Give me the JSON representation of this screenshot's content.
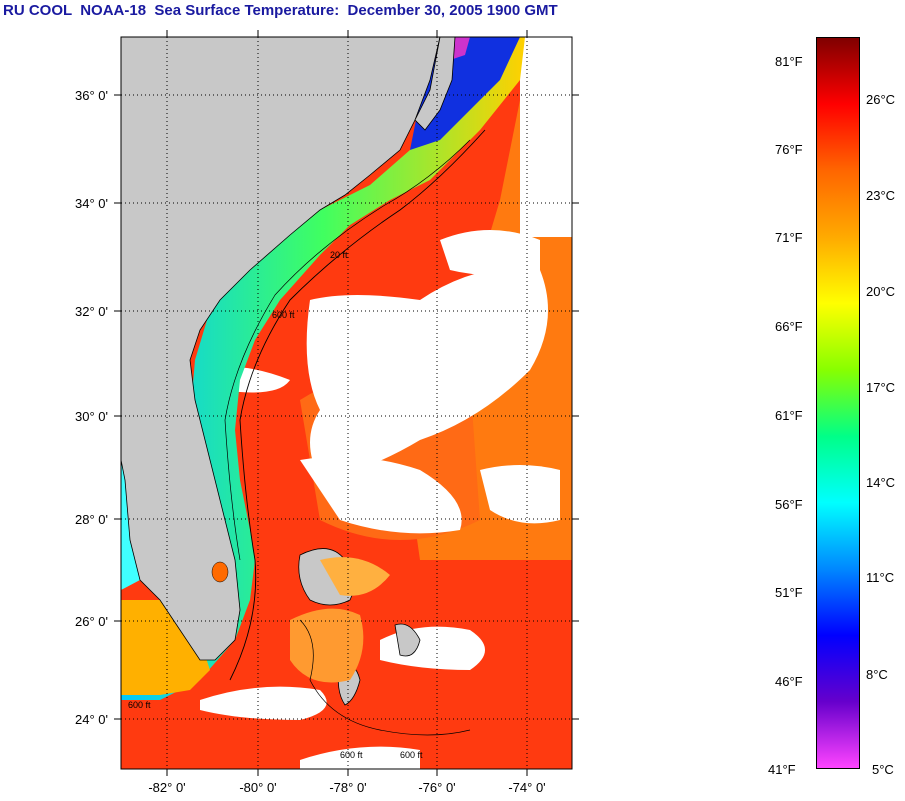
{
  "title": "RU COOL  NOAA-18  Sea Surface Temperature:  December 30, 2005 1900 GMT",
  "lat_labels": [
    "36° 0'",
    "34° 0'",
    "32° 0'",
    "30° 0'",
    "28° 0'",
    "26° 0'",
    "24° 0'"
  ],
  "lon_labels": [
    "-82° 0'",
    "-80° 0'",
    "-78° 0'",
    "-76° 0'",
    "-74° 0'"
  ],
  "depth_contour_labels": [
    "20 ft",
    "600 ft",
    "600 ft",
    "600 ft",
    "600 ft"
  ],
  "colorbar": {
    "fahrenheit_labels": [
      "81°F",
      "76°F",
      "71°F",
      "66°F",
      "61°F",
      "56°F",
      "51°F",
      "46°F",
      "41°F"
    ],
    "celsius_labels": [
      "26°C",
      "23°C",
      "20°C",
      "17°C",
      "14°C",
      "11°C",
      "8°C",
      "5°C"
    ],
    "gradient_colors": [
      "#800000",
      "#ff0000",
      "#ff6600",
      "#ffaa00",
      "#ffff00",
      "#88ff00",
      "#00ff88",
      "#00ffff",
      "#0088ff",
      "#0000ff",
      "#6600cc",
      "#ff44ff"
    ]
  },
  "colors": {
    "land": "#c8c8c8",
    "cloud": "#ffffff",
    "warm_water": "#ff3a10",
    "title_text": "#1a1aa0"
  }
}
